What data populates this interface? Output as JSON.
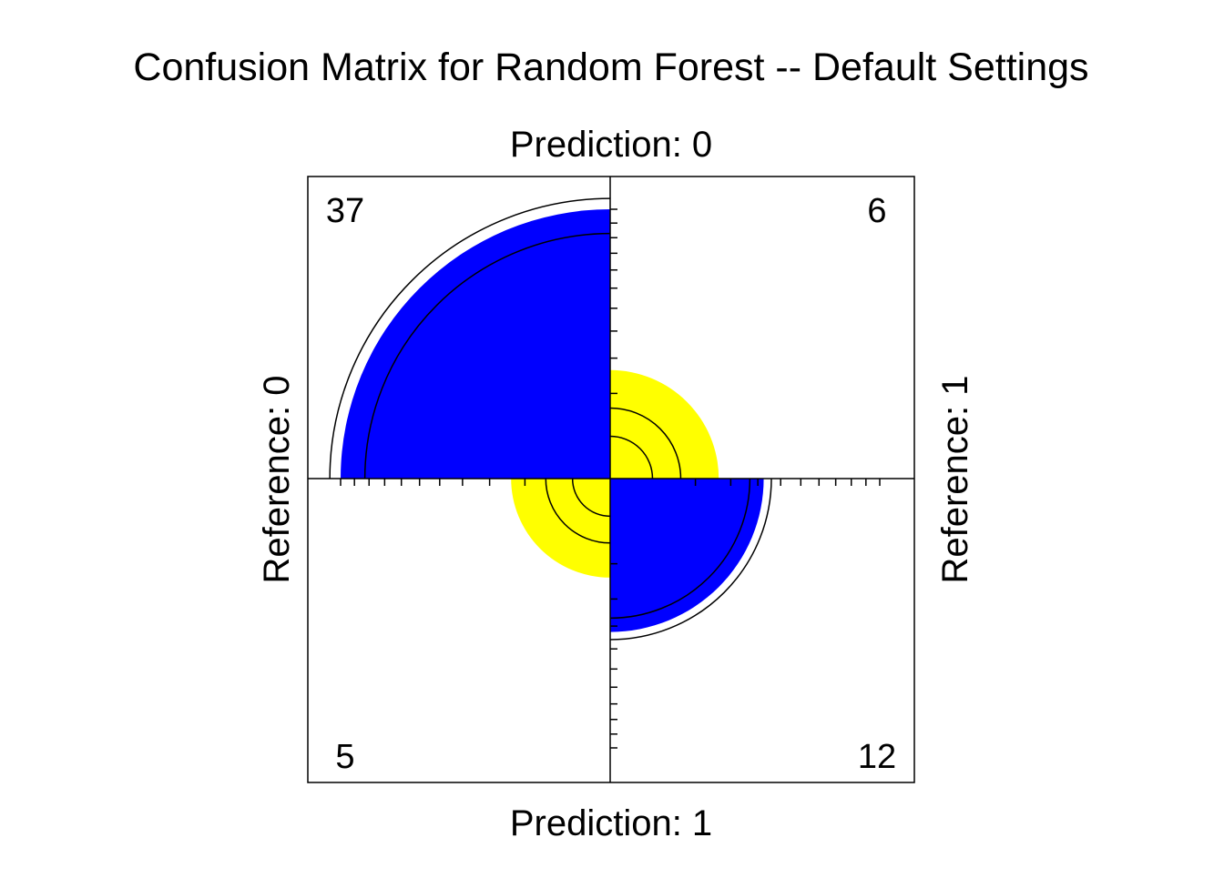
{
  "chart_data": {
    "type": "fourfold",
    "title": "Confusion Matrix for Random Forest -- Default Settings",
    "top_label": "Prediction: 0",
    "bottom_label": "Prediction: 1",
    "left_label": "Reference: 0",
    "right_label": "Reference: 1",
    "cells": [
      {
        "id": "top-left",
        "row": "Reference: 0",
        "col": "Prediction: 0",
        "count": 37,
        "label": "37",
        "color": "#0000ff",
        "inner_ci_radius_frac": 0.91,
        "outer_ci_radius_frac": 1.04
      },
      {
        "id": "top-right",
        "row": "Reference: 1",
        "col": "Prediction: 0",
        "count": 6,
        "label": "6",
        "color": "#ffff00",
        "inner_ci_radius_frac": 0.39,
        "outer_ci_radius_frac": 0.65
      },
      {
        "id": "bottom-left",
        "row": "Reference: 0",
        "col": "Prediction: 1",
        "count": 5,
        "label": "5",
        "color": "#ffff00",
        "inner_ci_radius_frac": 0.38,
        "outer_ci_radius_frac": 0.65
      },
      {
        "id": "bottom-right",
        "row": "Reference: 1",
        "col": "Prediction: 1",
        "count": 12,
        "label": "12",
        "color": "#0000ff",
        "inner_ci_radius_frac": 0.91,
        "outer_ci_radius_frac": 1.05
      }
    ],
    "colors": {
      "agree": "#0000ff",
      "disagree": "#ffff00",
      "outline": "#000000"
    }
  }
}
